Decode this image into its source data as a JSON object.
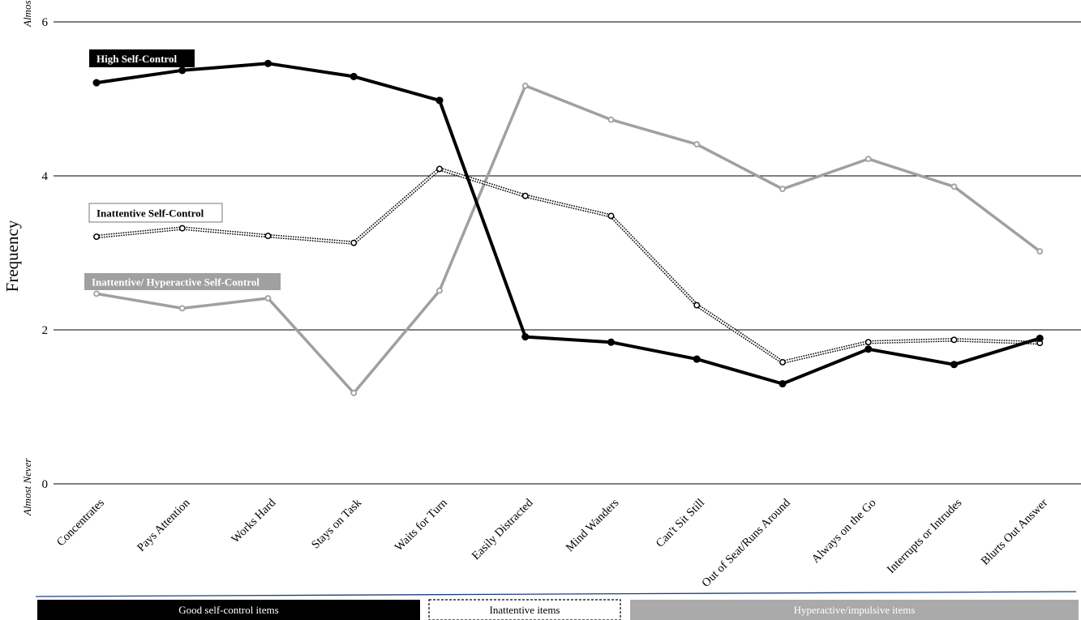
{
  "chart_data": {
    "type": "line",
    "title": "",
    "xlabel": "",
    "ylabel": "Frequency",
    "ylim": [
      0,
      6
    ],
    "yticks": [
      0,
      2,
      4,
      6
    ],
    "y_low_label": "Almost Never",
    "y_high_label": "Almost Always",
    "grid": "horizontal",
    "categories": [
      "Concentrates",
      "Pays Attention",
      "Works Hard",
      "Stays on Task",
      "Waits for Turn",
      "Easily Distracted",
      "Mind Wanders",
      "Can't Sit Still",
      "Out of Seat/Runs Around",
      "Always on the Go",
      "Interrupts or Intrudes",
      "Blurts Out Answer"
    ],
    "series": [
      {
        "name": "High Self-Control",
        "style": "solid-thick",
        "color": "#000000",
        "values": [
          5.21,
          5.37,
          5.46,
          5.29,
          4.98,
          1.91,
          1.84,
          1.62,
          1.3,
          1.75,
          1.55,
          1.89
        ]
      },
      {
        "name": "Inattentive Self-Control",
        "style": "double-dotted",
        "color": "#000000",
        "values": [
          3.21,
          3.32,
          3.22,
          3.13,
          4.09,
          3.74,
          3.48,
          2.32,
          1.58,
          1.84,
          1.87,
          1.83
        ]
      },
      {
        "name": "Inattentive/ Hyperactive Self-Control",
        "style": "solid-gray",
        "color": "#a0a0a0",
        "values": [
          2.47,
          2.28,
          2.41,
          1.18,
          2.51,
          5.17,
          4.73,
          4.41,
          3.83,
          4.22,
          3.86,
          3.02
        ]
      }
    ],
    "groups": [
      {
        "label": "Good self-control items",
        "style": "black",
        "items": [
          "Concentrates",
          "Pays Attention",
          "Works Hard",
          "Stays on Task",
          "Waits for Turn"
        ]
      },
      {
        "label": "Inattentive items",
        "style": "dashed",
        "items": [
          "Easily Distracted",
          "Mind Wanders"
        ]
      },
      {
        "label": "Hyperactive/impulsive items",
        "style": "gray",
        "items": [
          "Can't Sit Still",
          "Out of Seat/Runs Around",
          "Always on the Go",
          "Interrupts or Intrudes",
          "Blurts Out Answer"
        ]
      }
    ]
  }
}
